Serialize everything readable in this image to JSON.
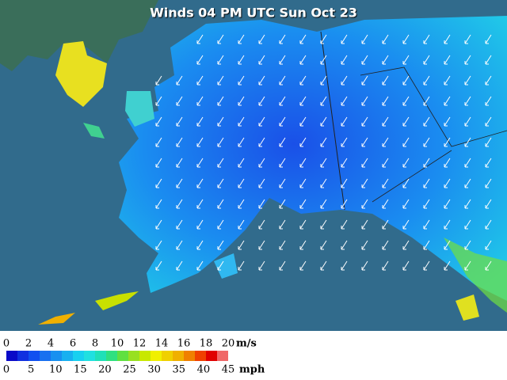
{
  "title": "Winds 04 PM UTC Sun Oct 23",
  "legend": {
    "ms_ticks": [
      0,
      2,
      4,
      6,
      8,
      10,
      12,
      14,
      16,
      18,
      20
    ],
    "ms_unit": "m/s",
    "mph_ticks": [
      0,
      5,
      10,
      15,
      20,
      25,
      30,
      35,
      40,
      45
    ],
    "mph_unit": "mph",
    "colors": [
      "#0a0ac8",
      "#1030e0",
      "#1050f0",
      "#1870f0",
      "#1890f0",
      "#18b0f0",
      "#18d0f0",
      "#20e0e0",
      "#20e0b8",
      "#30e080",
      "#60e040",
      "#98e020",
      "#c8e800",
      "#f0f000",
      "#f0d000",
      "#f0b000",
      "#f08000",
      "#f04000",
      "#e00000",
      "#f06868"
    ]
  }
}
